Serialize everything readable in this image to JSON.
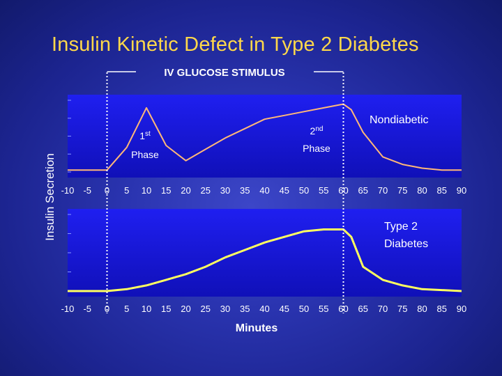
{
  "title": "Insulin Kinetic Defect in Type 2 Diabetes",
  "colors": {
    "background": "#2a34b0",
    "title": "#ffd84a",
    "panel": "#1a1ee0",
    "nondiabetic_line": "#ffb878",
    "type2_line": "#ffff60"
  },
  "chart_data": [
    {
      "type": "line",
      "panel": "top",
      "ylabel": "Insulin Secretion",
      "xlabel": "",
      "xlim": [
        -10,
        90
      ],
      "xticks": [
        "-10",
        "-5",
        "0",
        "5",
        "10",
        "15",
        "20",
        "25",
        "30",
        "35",
        "40",
        "45",
        "50",
        "55",
        "60",
        "65",
        "70",
        "75",
        "80",
        "85",
        "90"
      ],
      "series": [
        {
          "name": "Nondiabetic",
          "x": [
            -10,
            -5,
            0,
            5,
            10,
            15,
            20,
            25,
            30,
            35,
            40,
            45,
            50,
            55,
            60,
            62,
            65,
            70,
            75,
            80,
            85,
            90
          ],
          "values": [
            0.4,
            0.4,
            0.4,
            1.6,
            3.7,
            1.7,
            0.9,
            1.5,
            2.1,
            2.6,
            3.1,
            3.3,
            3.5,
            3.7,
            3.9,
            3.6,
            2.4,
            1.1,
            0.7,
            0.5,
            0.4,
            0.4
          ]
        }
      ],
      "ylim": [
        0,
        4.4
      ],
      "annotations": [
        {
          "text": "Phase",
          "superscript": "st",
          "number": "1",
          "x": 10
        },
        {
          "text": "Phase",
          "superscript": "nd",
          "number": "2",
          "x": 55
        }
      ]
    },
    {
      "type": "line",
      "panel": "bottom",
      "ylabel": "",
      "xlabel": "Minutes",
      "xlim": [
        -10,
        90
      ],
      "xticks": [
        "-10",
        "-5",
        "0",
        "5",
        "10",
        "15",
        "20",
        "25",
        "30",
        "35",
        "40",
        "45",
        "50",
        "55",
        "60",
        "65",
        "70",
        "75",
        "80",
        "85",
        "90"
      ],
      "series": [
        {
          "name": "Type 2 Diabetes",
          "x": [
            -10,
            -5,
            0,
            5,
            10,
            15,
            20,
            25,
            30,
            35,
            40,
            45,
            50,
            55,
            60,
            62,
            65,
            70,
            75,
            80,
            85,
            90
          ],
          "values": [
            0.0,
            0.0,
            0.0,
            0.1,
            0.3,
            0.6,
            0.9,
            1.3,
            1.8,
            2.2,
            2.6,
            2.9,
            3.2,
            3.3,
            3.3,
            2.9,
            1.3,
            0.6,
            0.3,
            0.1,
            0.05,
            0.0
          ]
        }
      ],
      "ylim": [
        -0.3,
        4.4
      ]
    }
  ],
  "stimulus": {
    "label": "IV GLUCOSE STIMULUS",
    "start": 0,
    "end": 60
  },
  "legend": {
    "nondiabetic": "Nondiabetic",
    "type2_line1": "Type 2",
    "type2_line2": "Diabetes"
  }
}
